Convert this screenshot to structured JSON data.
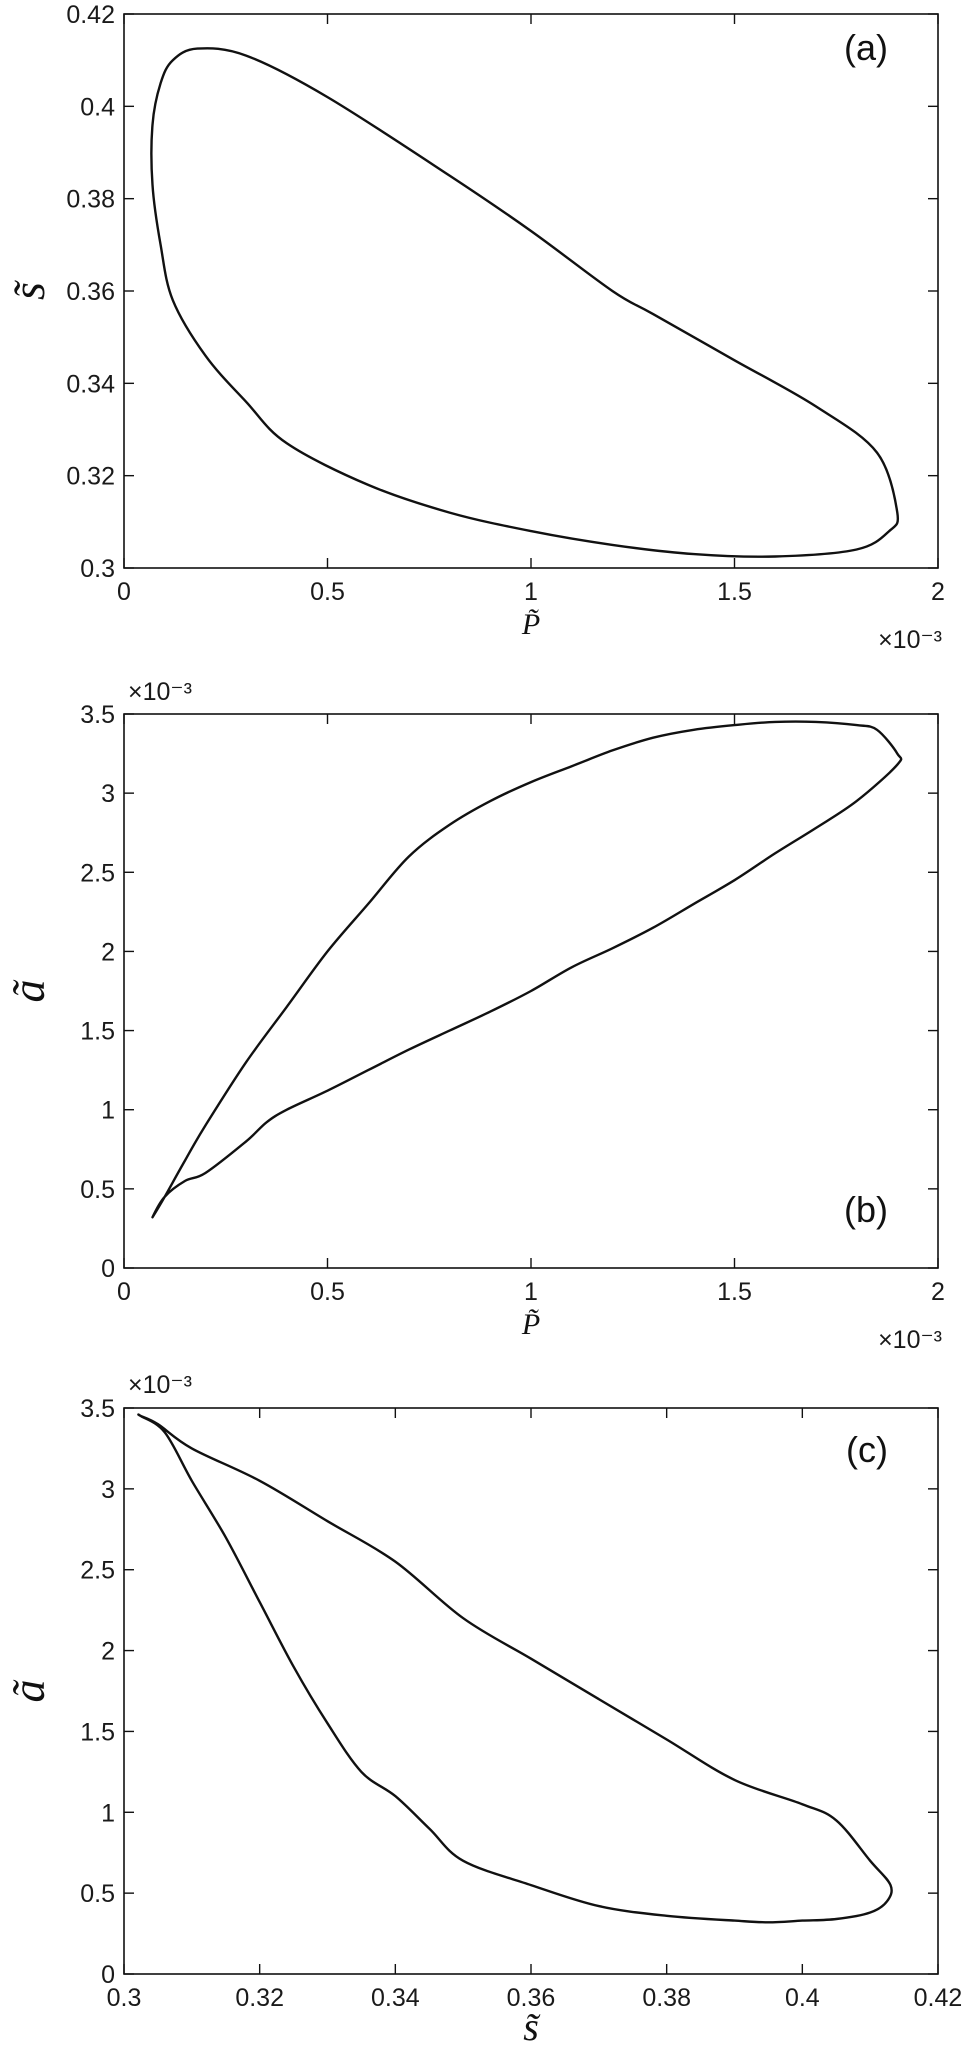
{
  "chart_data": [
    {
      "type": "line",
      "panel_label": "(a)",
      "legend_position": "top-right",
      "xlabel": "P̃",
      "ylabel": "s̃",
      "x_exponent_label": "×10⁻³",
      "y_exponent_label": "",
      "xlim": [
        0,
        0.002
      ],
      "ylim": [
        0.3,
        0.42
      ],
      "grid": false,
      "x_ticks": [
        0,
        0.0005,
        0.001,
        0.0015,
        0.002
      ],
      "x_tick_labels": [
        "0",
        "0.5",
        "1",
        "1.5",
        "2"
      ],
      "y_ticks": [
        0.3,
        0.32,
        0.34,
        0.36,
        0.38,
        0.4,
        0.42
      ],
      "y_tick_labels": [
        "0.3",
        "0.32",
        "0.34",
        "0.36",
        "0.38",
        "0.4",
        "0.42"
      ],
      "series": [
        {
          "closed": true,
          "x": [
            0.00018,
            0.0003,
            0.0005,
            0.0008,
            0.001,
            0.0012,
            0.0013,
            0.0015,
            0.0017,
            0.00185,
            0.0019,
            0.00188,
            0.0018,
            0.0016,
            0.0014,
            0.0012,
            0.001,
            0.0008,
            0.0006,
            0.0004,
            0.0003,
            0.0002,
            0.00012,
            9e-05,
            7e-05,
            7e-05,
            9e-05,
            0.00012
          ],
          "y": [
            0.4125,
            0.411,
            0.402,
            0.385,
            0.373,
            0.36,
            0.355,
            0.345,
            0.335,
            0.325,
            0.312,
            0.308,
            0.304,
            0.3025,
            0.303,
            0.305,
            0.308,
            0.312,
            0.318,
            0.327,
            0.336,
            0.346,
            0.358,
            0.37,
            0.383,
            0.396,
            0.405,
            0.41
          ]
        }
      ]
    },
    {
      "type": "line",
      "panel_label": "(b)",
      "legend_position": "bottom-right",
      "xlabel": "P̃",
      "ylabel": "ã",
      "x_exponent_label": "×10⁻³",
      "y_exponent_label": "×10⁻³",
      "xlim": [
        0,
        0.002
      ],
      "ylim": [
        0,
        0.0035
      ],
      "grid": false,
      "x_ticks": [
        0,
        0.0005,
        0.001,
        0.0015,
        0.002
      ],
      "x_tick_labels": [
        "0",
        "0.5",
        "1",
        "1.5",
        "2"
      ],
      "y_ticks": [
        0,
        0.0005,
        0.001,
        0.0015,
        0.002,
        0.0025,
        0.003,
        0.0035
      ],
      "y_tick_labels": [
        "0",
        "0.5",
        "1",
        "1.5",
        "2",
        "2.5",
        "3",
        "3.5"
      ],
      "series": [
        {
          "closed": true,
          "x": [
            7e-05,
            0.0001,
            0.00015,
            0.0002,
            0.0003,
            0.0004,
            0.0005,
            0.0006,
            0.0007,
            0.0008,
            0.0009,
            0.001,
            0.0011,
            0.0012,
            0.0013,
            0.0014,
            0.0015,
            0.0016,
            0.0017,
            0.0018,
            0.00185,
            0.0019,
            0.0019,
            0.0018,
            0.0017,
            0.0016,
            0.0015,
            0.0014,
            0.0013,
            0.0012,
            0.0011,
            0.001,
            0.0009,
            0.0008,
            0.0007,
            0.0006,
            0.0005,
            0.0004,
            0.00035,
            0.0003,
            0.0002,
            0.00015,
            0.0001
          ],
          "y": [
            0.00032,
            0.00045,
            0.00068,
            0.0009,
            0.0013,
            0.00165,
            0.002,
            0.0023,
            0.0026,
            0.0028,
            0.00295,
            0.00307,
            0.00317,
            0.00327,
            0.00335,
            0.0034,
            0.00343,
            0.00345,
            0.00345,
            0.00343,
            0.0034,
            0.00325,
            0.00318,
            0.00295,
            0.00278,
            0.00262,
            0.00245,
            0.0023,
            0.00215,
            0.00202,
            0.0019,
            0.00175,
            0.00162,
            0.0015,
            0.00138,
            0.00125,
            0.00112,
            0.001,
            0.00092,
            0.0008,
            0.0006,
            0.00055,
            0.00045
          ]
        }
      ]
    },
    {
      "type": "line",
      "panel_label": "(c)",
      "legend_position": "top-right",
      "xlabel": "s̃",
      "ylabel": "ã",
      "x_exponent_label": "",
      "y_exponent_label": "×10⁻³",
      "xlim": [
        0.3,
        0.42
      ],
      "ylim": [
        0,
        0.0035
      ],
      "grid": false,
      "x_ticks": [
        0.3,
        0.32,
        0.34,
        0.36,
        0.38,
        0.4,
        0.42
      ],
      "x_tick_labels": [
        "0.3",
        "0.32",
        "0.34",
        "0.36",
        "0.38",
        "0.4",
        "0.42"
      ],
      "y_ticks": [
        0,
        0.0005,
        0.001,
        0.0015,
        0.002,
        0.0025,
        0.003,
        0.0035
      ],
      "y_tick_labels": [
        "0",
        "0.5",
        "1",
        "1.5",
        "2",
        "2.5",
        "3",
        "3.5"
      ],
      "series": [
        {
          "closed": true,
          "x": [
            0.3025,
            0.305,
            0.31,
            0.32,
            0.33,
            0.34,
            0.35,
            0.36,
            0.37,
            0.38,
            0.39,
            0.4,
            0.405,
            0.41,
            0.413,
            0.4125,
            0.41,
            0.405,
            0.4,
            0.395,
            0.39,
            0.38,
            0.37,
            0.36,
            0.35,
            0.345,
            0.34,
            0.335,
            0.33,
            0.325,
            0.32,
            0.315,
            0.31,
            0.306,
            0.3025
          ],
          "y": [
            0.00345,
            0.0034,
            0.00325,
            0.00305,
            0.0028,
            0.00255,
            0.0022,
            0.00195,
            0.0017,
            0.00145,
            0.0012,
            0.00105,
            0.00095,
            0.0007,
            0.00055,
            0.00045,
            0.00038,
            0.00034,
            0.00033,
            0.00032,
            0.00033,
            0.00036,
            0.00042,
            0.00055,
            0.0007,
            0.0009,
            0.0011,
            0.00125,
            0.00155,
            0.0019,
            0.0023,
            0.0027,
            0.00305,
            0.00335,
            0.00345
          ]
        }
      ]
    }
  ]
}
